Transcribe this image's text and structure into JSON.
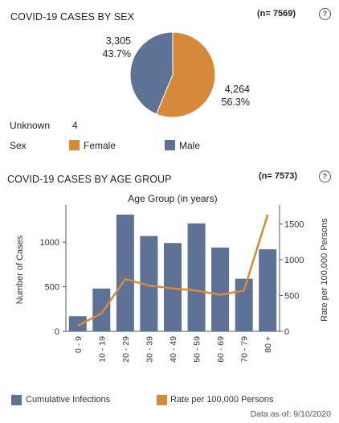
{
  "colors": {
    "female": "#d7893a",
    "male": "#5e7295",
    "bar": "#5e7295",
    "rate_line": "#d7893a",
    "axis": "#555555"
  },
  "sex_section": {
    "title": "COVID-19 CASES BY SEX",
    "count": "(n= 7569)",
    "help_icon": "?",
    "male_value": "3,305",
    "male_pct": "43.7%",
    "female_value": "4,264",
    "female_pct": "56.3%",
    "unknown_label": "Unknown",
    "unknown_value": "4",
    "legend_title": "Sex",
    "legend_female": "Female",
    "legend_male": "Male"
  },
  "age_section": {
    "title": "COVID-19 CASES BY AGE GROUP",
    "count": "(n= 7573)",
    "help_icon": "?",
    "legend_cumulative": "Cumulative Infections",
    "legend_rate": "Rate per 100,000 Persons"
  },
  "footer": {
    "data_as_of": "Data as of:  9/10/2020"
  },
  "chart_data": [
    {
      "type": "pie",
      "categories": [
        "Female",
        "Male"
      ],
      "values": [
        4264,
        3305
      ],
      "percentages": [
        56.3,
        43.7
      ]
    },
    {
      "type": "bar",
      "title": "Age Group (in years)",
      "xlabel": "",
      "ylabel": "Number of Cases",
      "y2label": "Rate per 100,000 Persons",
      "categories": [
        "0 - 9",
        "10 - 19",
        "20 - 29",
        "30 - 39",
        "40 - 49",
        "50 - 59",
        "60 - 69",
        "70 - 79",
        "80 +"
      ],
      "series": [
        {
          "name": "Cumulative Infections",
          "axis": "left",
          "mark": "bar",
          "values": [
            170,
            480,
            1310,
            1070,
            990,
            1210,
            940,
            590,
            920
          ]
        },
        {
          "name": "Rate per 100,000 Persons",
          "axis": "right",
          "mark": "line",
          "values": [
            80,
            250,
            730,
            640,
            600,
            570,
            510,
            570,
            1630
          ]
        }
      ],
      "ylim": [
        0,
        1380
      ],
      "y2lim": [
        0,
        1720
      ],
      "yticks": [
        0,
        500,
        1000
      ],
      "y2ticks": [
        0,
        500,
        1000,
        1500
      ],
      "grid": false,
      "legend_position": "bottom"
    }
  ]
}
